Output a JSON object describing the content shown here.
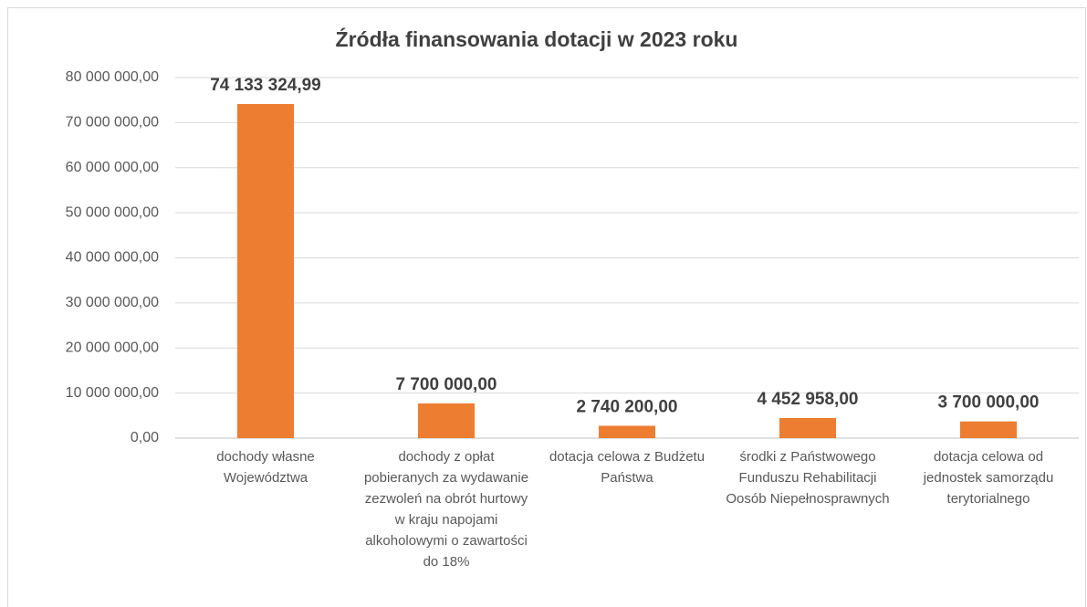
{
  "chart_data": {
    "type": "bar",
    "title": "Źródła finansowania dotacji w 2023 roku",
    "categories": [
      "dochody własne Województwa",
      "dochody z opłat pobieranych za wydawanie zezwoleń na obrót hurtowy w kraju napojami alkoholowymi o zawartości do 18%",
      "dotacja celowa z Budżetu Państwa",
      "środki z Państwowego Funduszu Rehabilitacji Oosób Niepełnosprawnych",
      "dotacja celowa od jednostek samorządu terytorialnego"
    ],
    "values": [
      74133324.99,
      7700000,
      2740200,
      4452958,
      3700000
    ],
    "value_labels": [
      "74 133 324,99",
      "7 700 000,00",
      "2 740 200,00",
      "4 452 958,00",
      "3 700 000,00"
    ],
    "color": "#ed7d31",
    "ylim": [
      0,
      80000000
    ],
    "yticks": [
      {
        "value": 0,
        "label": "0,00"
      },
      {
        "value": 10000000,
        "label": "10 000 000,00"
      },
      {
        "value": 20000000,
        "label": "20 000 000,00"
      },
      {
        "value": 30000000,
        "label": "30 000 000,00"
      },
      {
        "value": 40000000,
        "label": "40 000 000,00"
      },
      {
        "value": 50000000,
        "label": "50 000 000,00"
      },
      {
        "value": 60000000,
        "label": "60 000 000,00"
      },
      {
        "value": 70000000,
        "label": "70 000 000,00"
      },
      {
        "value": 80000000,
        "label": "80 000 000,00"
      }
    ],
    "grid": true
  }
}
